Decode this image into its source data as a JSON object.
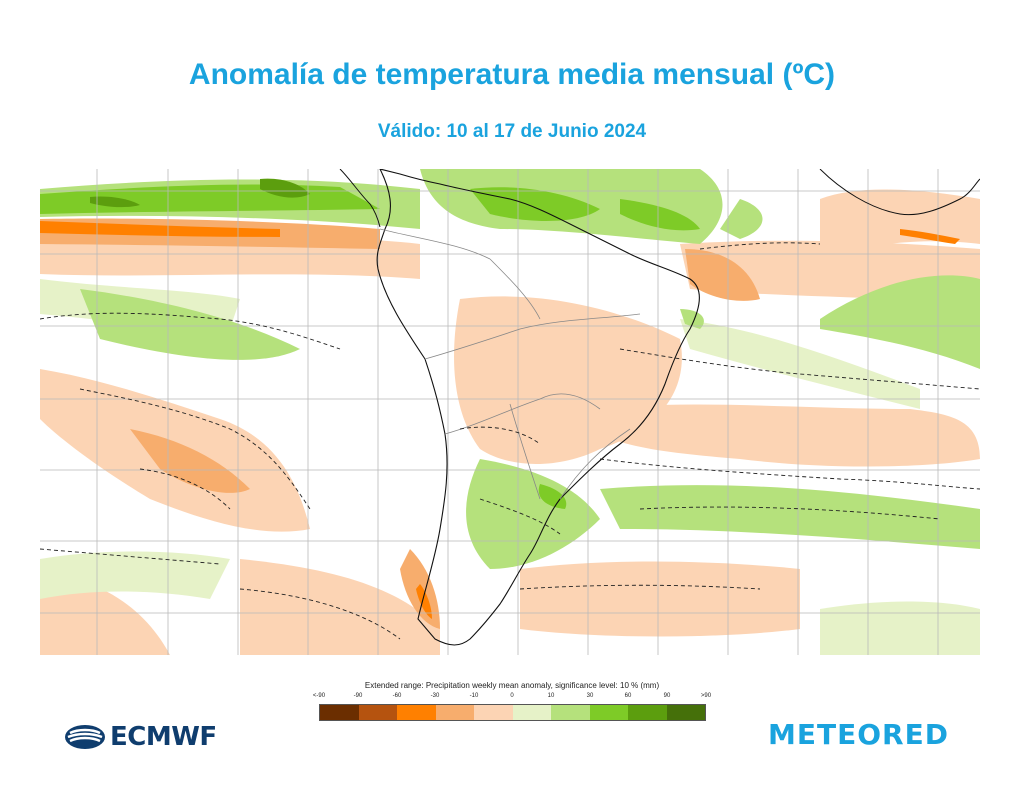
{
  "title": "Anomalía de temperatura media mensual (ºC)",
  "subtitle": "Válido: 10 al 17 de Junio 2024",
  "legend": {
    "caption": "Extended range: Precipitation weekly mean anomaly, significance level: 10 % (mm)",
    "ticks": [
      "<-90",
      "-90",
      "-60",
      "-30",
      "-10",
      "0",
      "10",
      "30",
      "60",
      "90",
      ">90"
    ],
    "colors": [
      "#6b2e00",
      "#b5530f",
      "#ff8000",
      "#f7ad6d",
      "#fcd4b4",
      "#e6f2c8",
      "#b5e17c",
      "#7ecb27",
      "#5c9e0e",
      "#45700a"
    ]
  },
  "logos": {
    "ecmwf": "ECMWF",
    "meteored": "METEORED"
  },
  "colors": {
    "title": "#1aa3de",
    "land_border": "#888888",
    "coast": "#111111"
  }
}
